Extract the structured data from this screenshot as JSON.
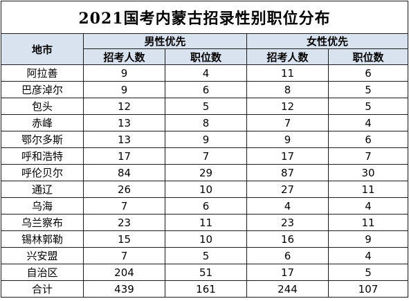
{
  "title": "2021国考内蒙古招录性别职位分布",
  "headers": {
    "region": "地市",
    "male_group": "男性优先",
    "female_group": "女性优先",
    "recruits": "招考人数",
    "positions": "职位数"
  },
  "rows": [
    {
      "city": "阿拉善",
      "m_recruits": "9",
      "m_positions": "4",
      "f_recruits": "11",
      "f_positions": "6"
    },
    {
      "city": "巴彦淖尔",
      "m_recruits": "9",
      "m_positions": "6",
      "f_recruits": "8",
      "f_positions": "5"
    },
    {
      "city": "包头",
      "m_recruits": "12",
      "m_positions": "5",
      "f_recruits": "12",
      "f_positions": "5"
    },
    {
      "city": "赤峰",
      "m_recruits": "13",
      "m_positions": "8",
      "f_recruits": "7",
      "f_positions": "4"
    },
    {
      "city": "鄂尔多斯",
      "m_recruits": "13",
      "m_positions": "9",
      "f_recruits": "9",
      "f_positions": "6"
    },
    {
      "city": "呼和浩特",
      "m_recruits": "17",
      "m_positions": "7",
      "f_recruits": "17",
      "f_positions": "7"
    },
    {
      "city": "呼伦贝尔",
      "m_recruits": "84",
      "m_positions": "29",
      "f_recruits": "87",
      "f_positions": "30"
    },
    {
      "city": "通辽",
      "m_recruits": "26",
      "m_positions": "10",
      "f_recruits": "27",
      "f_positions": "11"
    },
    {
      "city": "乌海",
      "m_recruits": "7",
      "m_positions": "6",
      "f_recruits": "4",
      "f_positions": "4"
    },
    {
      "city": "乌兰察布",
      "m_recruits": "23",
      "m_positions": "11",
      "f_recruits": "23",
      "f_positions": "11"
    },
    {
      "city": "锡林郭勒",
      "m_recruits": "15",
      "m_positions": "10",
      "f_recruits": "16",
      "f_positions": "9"
    },
    {
      "city": "兴安盟",
      "m_recruits": "7",
      "m_positions": "5",
      "f_recruits": "6",
      "f_positions": "4"
    },
    {
      "city": "自治区",
      "m_recruits": "204",
      "m_positions": "51",
      "f_recruits": "17",
      "f_positions": "5"
    },
    {
      "city": "合计",
      "m_recruits": "439",
      "m_positions": "161",
      "f_recruits": "244",
      "f_positions": "107"
    }
  ]
}
